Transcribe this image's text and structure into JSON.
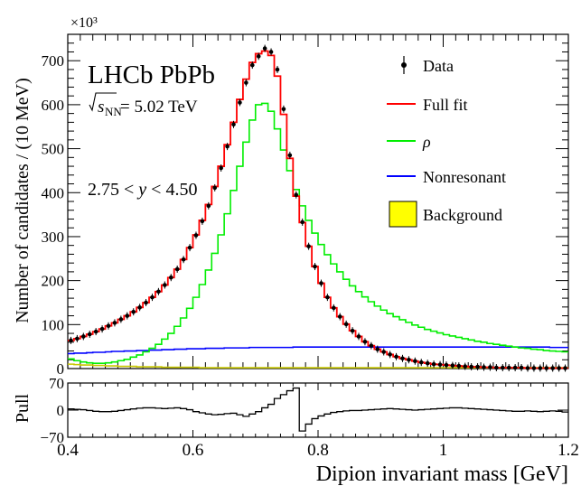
{
  "chart_data": [
    {
      "type": "line",
      "experiment_label": "LHCb PbPb",
      "energy_label": {
        "sqrt": "s",
        "subscript": "NN",
        "value": " = 5.02 TeV"
      },
      "rapidity_label": {
        "lo": "2.75 < ",
        "var": "y",
        "hi": " < 4.50"
      },
      "ylabel": "Number of candidates / (10 MeV)",
      "y_multiplier": "×10³",
      "xlim": [
        0.4,
        1.2
      ],
      "ylim": [
        0,
        760
      ],
      "y_ticks": [
        0,
        100,
        200,
        300,
        400,
        500,
        600,
        700
      ],
      "legend": {
        "placement": "top-right",
        "entries": [
          {
            "label": "Data",
            "style": "marker",
            "color": "#000000"
          },
          {
            "label": "Full fit",
            "style": "line",
            "color": "#ff0000"
          },
          {
            "label": "ρ",
            "style": "line",
            "color": "#00ee00"
          },
          {
            "label": "Nonresonant",
            "style": "line",
            "color": "#0000ff"
          },
          {
            "label": "Background",
            "style": "box",
            "color": "#ffff00"
          }
        ]
      },
      "bin_width": 0.01,
      "x": [
        0.405,
        0.415,
        0.425,
        0.435,
        0.445,
        0.455,
        0.465,
        0.475,
        0.485,
        0.495,
        0.505,
        0.515,
        0.525,
        0.535,
        0.545,
        0.555,
        0.565,
        0.575,
        0.585,
        0.595,
        0.605,
        0.615,
        0.625,
        0.635,
        0.645,
        0.655,
        0.665,
        0.675,
        0.685,
        0.695,
        0.705,
        0.715,
        0.725,
        0.735,
        0.745,
        0.755,
        0.765,
        0.775,
        0.785,
        0.795,
        0.805,
        0.815,
        0.825,
        0.835,
        0.845,
        0.855,
        0.865,
        0.875,
        0.885,
        0.895,
        0.905,
        0.915,
        0.925,
        0.935,
        0.945,
        0.955,
        0.965,
        0.975,
        0.985,
        0.995,
        1.005,
        1.015,
        1.025,
        1.035,
        1.045,
        1.055,
        1.065,
        1.075,
        1.085,
        1.095,
        1.105,
        1.115,
        1.125,
        1.135,
        1.145,
        1.155,
        1.165,
        1.175,
        1.185,
        1.195
      ],
      "series": [
        {
          "name": "Data",
          "style": "points",
          "color": "#000000",
          "values": [
            64,
            68,
            73,
            78,
            84,
            90,
            97,
            104,
            112,
            120,
            129,
            139,
            150,
            162,
            175,
            190,
            207,
            226,
            248,
            275,
            303,
            335,
            370,
            411,
            456,
            505,
            555,
            605,
            650,
            690,
            710,
            728,
            720,
            680,
            590,
            485,
            395,
            333,
            278,
            232,
            194,
            162,
            138,
            118,
            101,
            86,
            73,
            61,
            52,
            44,
            38,
            32,
            27,
            23,
            20,
            17,
            14,
            12,
            10,
            9,
            8,
            7,
            6,
            5,
            4,
            4,
            3,
            3,
            2,
            2,
            2,
            2,
            2,
            1,
            1,
            1,
            1,
            1,
            1,
            1
          ]
        },
        {
          "name": "Full fit",
          "style": "step",
          "color": "#ff0000",
          "values": [
            64,
            68,
            73,
            78,
            84,
            90,
            97,
            104,
            112,
            120,
            129,
            139,
            150,
            162,
            175,
            190,
            207,
            226,
            248,
            275,
            304,
            337,
            373,
            414,
            460,
            509,
            560,
            612,
            658,
            696,
            716,
            722,
            712,
            665,
            578,
            478,
            392,
            332,
            278,
            232,
            194,
            162,
            138,
            118,
            101,
            86,
            73,
            61,
            52,
            44,
            38,
            32,
            27,
            23,
            20,
            17,
            14,
            12,
            10,
            9,
            8,
            7,
            6,
            5,
            4,
            4,
            3,
            3,
            2,
            2,
            2,
            2,
            2,
            1,
            1,
            1,
            1,
            1,
            1,
            1
          ]
        },
        {
          "name": "ρ",
          "style": "step",
          "color": "#00ee00",
          "values": [
            22,
            18,
            15,
            13,
            12,
            12,
            13,
            15,
            18,
            21,
            26,
            31,
            38,
            46,
            55,
            67,
            80,
            96,
            115,
            137,
            162,
            191,
            224,
            262,
            304,
            352,
            405,
            460,
            515,
            565,
            600,
            603,
            585,
            545,
            497,
            450,
            407,
            370,
            337,
            308,
            282,
            259,
            238,
            220,
            203,
            188,
            175,
            163,
            152,
            142,
            133,
            125,
            118,
            111,
            105,
            99,
            94,
            89,
            85,
            81,
            77,
            74,
            71,
            68,
            65,
            62,
            60,
            57,
            55,
            53,
            51,
            49,
            47,
            46,
            44,
            43,
            41,
            40,
            39,
            38
          ]
        },
        {
          "name": "Nonresonant",
          "style": "step",
          "color": "#0000ff",
          "values": [
            34,
            35,
            35,
            36,
            37,
            37,
            38,
            39,
            39,
            40,
            40,
            41,
            41,
            42,
            42,
            43,
            43,
            44,
            44,
            45,
            45,
            45,
            46,
            46,
            46,
            47,
            47,
            47,
            47,
            48,
            48,
            48,
            48,
            48,
            48,
            48,
            49,
            49,
            49,
            49,
            49,
            49,
            49,
            49,
            49,
            49,
            49,
            49,
            49,
            49,
            49,
            49,
            49,
            49,
            49,
            49,
            49,
            49,
            49,
            49,
            49,
            49,
            49,
            49,
            49,
            49,
            49,
            49,
            49,
            49,
            49,
            49,
            49,
            49,
            49,
            49,
            49,
            48,
            48,
            48
          ]
        },
        {
          "name": "Background",
          "style": "step",
          "color": "#c8c800",
          "values": [
            10,
            9,
            8,
            8,
            7,
            7,
            6,
            6,
            5,
            5,
            5,
            4,
            4,
            4,
            4,
            3,
            3,
            3,
            3,
            3,
            3,
            2,
            2,
            2,
            2,
            2,
            2,
            2,
            2,
            2,
            2,
            2,
            2,
            2,
            2,
            2,
            2,
            2,
            2,
            2,
            2,
            2,
            2,
            2,
            2,
            2,
            2,
            2,
            2,
            2,
            2,
            2,
            2,
            2,
            2,
            2,
            2,
            2,
            2,
            2,
            2,
            2,
            2,
            2,
            2,
            2,
            2,
            2,
            2,
            2,
            2,
            2,
            2,
            2,
            2,
            2,
            2,
            2,
            2,
            2
          ]
        }
      ]
    },
    {
      "type": "line",
      "ylabel": "Pull",
      "xlabel": "Dipion invariant mass [GeV]",
      "xlim": [
        0.4,
        1.2
      ],
      "ylim": [
        -70,
        70
      ],
      "y_ticks": [
        70,
        0,
        -70
      ],
      "y_tick_labels": [
        "70",
        "0",
        "−70"
      ],
      "x_ticks": [
        0.4,
        0.6,
        0.8,
        1.0,
        1.2
      ],
      "x_tick_labels": [
        "0.4",
        "0.6",
        "0.8",
        "1",
        "1.2"
      ],
      "bin_width": 0.01,
      "x": [
        0.405,
        0.415,
        0.425,
        0.435,
        0.445,
        0.455,
        0.465,
        0.475,
        0.485,
        0.495,
        0.505,
        0.515,
        0.525,
        0.535,
        0.545,
        0.555,
        0.565,
        0.575,
        0.585,
        0.595,
        0.605,
        0.615,
        0.625,
        0.635,
        0.645,
        0.655,
        0.665,
        0.675,
        0.685,
        0.695,
        0.705,
        0.715,
        0.725,
        0.735,
        0.745,
        0.755,
        0.765,
        0.775,
        0.785,
        0.795,
        0.805,
        0.815,
        0.825,
        0.835,
        0.845,
        0.855,
        0.865,
        0.875,
        0.885,
        0.895,
        0.905,
        0.915,
        0.925,
        0.935,
        0.945,
        0.955,
        0.965,
        0.975,
        0.985,
        0.995,
        1.005,
        1.015,
        1.025,
        1.035,
        1.045,
        1.055,
        1.065,
        1.075,
        1.085,
        1.095,
        1.105,
        1.115,
        1.125,
        1.135,
        1.145,
        1.155,
        1.165,
        1.175,
        1.185,
        1.195
      ],
      "values": [
        3,
        2,
        1,
        -1,
        -3,
        -4,
        -4,
        -3,
        -1,
        1,
        3,
        5,
        6,
        6,
        5,
        4,
        5,
        6,
        4,
        1,
        -4,
        -7,
        -10,
        -12,
        -11,
        -9,
        -8,
        -12,
        -16,
        -10,
        -4,
        6,
        15,
        30,
        40,
        50,
        57,
        -54,
        -36,
        -22,
        -15,
        -10,
        -6,
        -4,
        -2,
        -1,
        -1,
        0,
        1,
        2,
        3,
        4,
        3,
        2,
        1,
        0,
        1,
        2,
        3,
        4,
        5,
        6,
        6,
        5,
        4,
        3,
        2,
        1,
        0,
        -1,
        -2,
        -3,
        -3,
        -2,
        -3,
        -4,
        -3,
        -2,
        -3,
        -5
      ]
    }
  ]
}
